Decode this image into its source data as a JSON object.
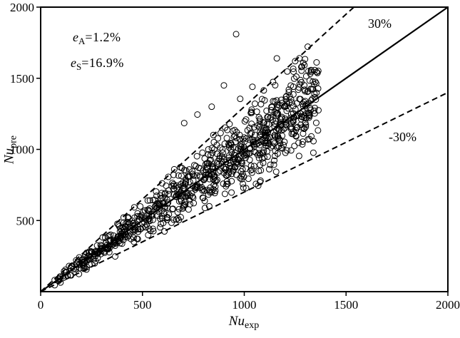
{
  "colors": {
    "background": "#ffffff",
    "axis": "#000000",
    "marker_stroke": "#000000",
    "text": "#000000"
  },
  "chart_data": {
    "type": "scatter",
    "title": "",
    "xlabel": {
      "main": "Nu",
      "sub": "exp"
    },
    "ylabel": {
      "main": "Nu",
      "sub": "pre"
    },
    "xlim": [
      0,
      2000
    ],
    "ylim": [
      0,
      2000
    ],
    "x_ticks": [
      0,
      500,
      1000,
      1500,
      2000
    ],
    "y_ticks": [
      500,
      1000,
      1500,
      2000
    ],
    "grid": false,
    "legend": "none",
    "reference_lines": [
      {
        "name": "parity-line",
        "slope": 1.0,
        "style": "solid",
        "label": ""
      },
      {
        "name": "plus-30-line",
        "slope": 1.3,
        "style": "dashed",
        "label": "30%"
      },
      {
        "name": "minus-30-line",
        "slope": 0.7,
        "style": "dashed",
        "label": "-30%"
      }
    ],
    "annotations": [
      {
        "symbol": "e",
        "sub": "A",
        "rest": "=1.2%"
      },
      {
        "symbol": "e",
        "sub": "S",
        "rest": "=16.9%"
      }
    ],
    "outlier_points": [
      [
        960,
        1810
      ],
      [
        1160,
        1640
      ],
      [
        1250,
        1620
      ],
      [
        1330,
        1555
      ],
      [
        900,
        1450
      ],
      [
        1040,
        1440
      ],
      [
        1265,
        1420
      ],
      [
        1310,
        1405
      ],
      [
        1345,
        1390
      ],
      [
        1100,
        1345
      ],
      [
        980,
        1355
      ],
      [
        840,
        1300
      ],
      [
        770,
        1245
      ],
      [
        705,
        1185
      ],
      [
        1200,
        1300
      ],
      [
        1150,
        1260
      ]
    ],
    "cloud": {
      "description": "dense open-circle scatter filling the +/-30% wedge around the parity line",
      "seed": 987654321,
      "n": 880,
      "x_min": 65,
      "x_max": 1365,
      "x_pow": 0.72,
      "ratio_spread": 0.32,
      "ratio_max_dev": 0.34,
      "y_jitter": 36
    },
    "marker": {
      "shape": "open-circle",
      "radius": 4,
      "stroke_width": 1,
      "fill": "none"
    }
  }
}
